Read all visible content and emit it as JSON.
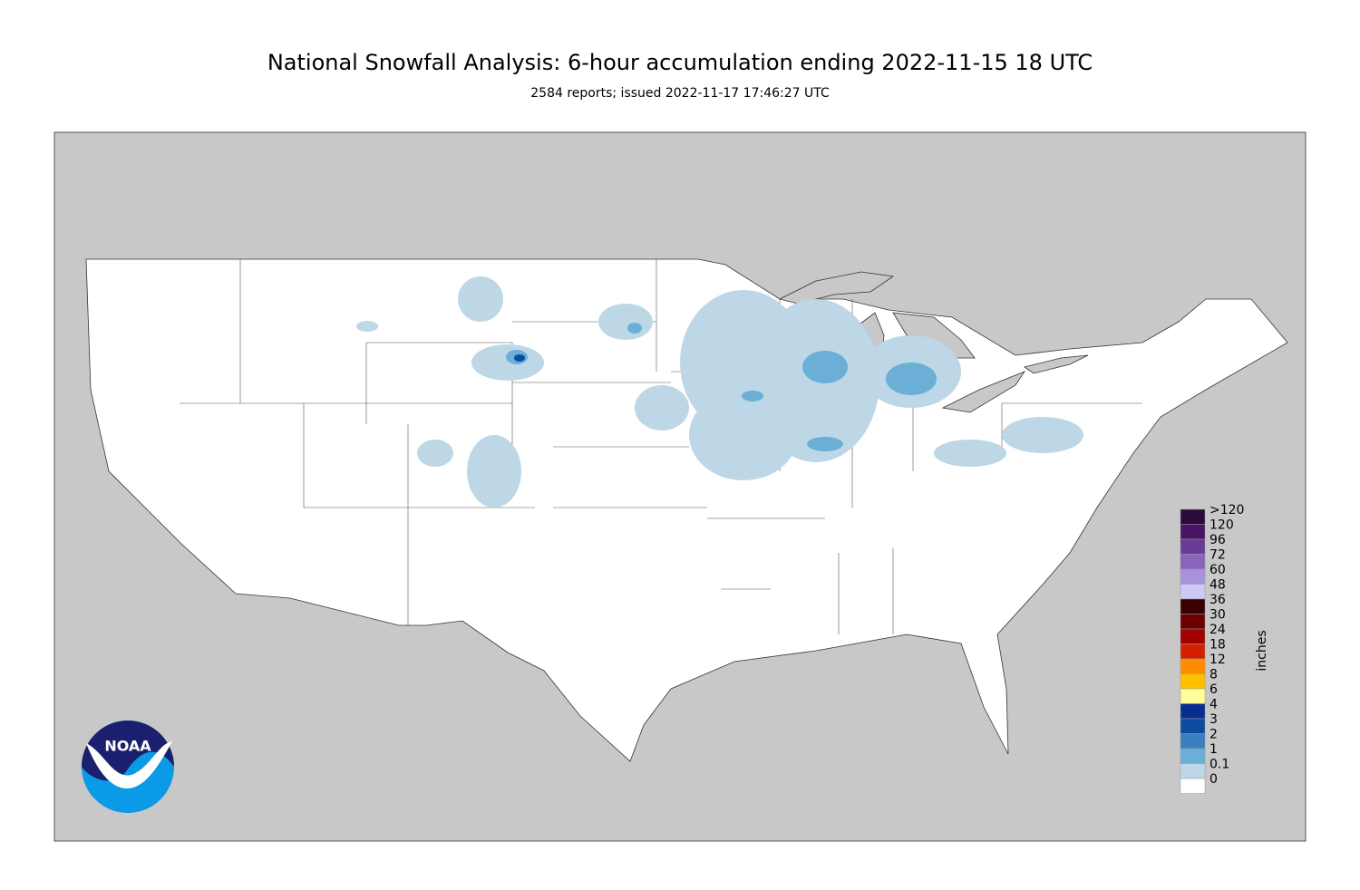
{
  "header": {
    "title": "National Snowfall Analysis: 6-hour accumulation ending 2022-11-15 18 UTC",
    "subtitle": "2584 reports; issued 2022-11-17 17:46:27 UTC"
  },
  "legend": {
    "unit": "inches",
    "items": [
      {
        "label": ">120",
        "color": "#2b0a3d"
      },
      {
        "label": "120",
        "color": "#4b1466"
      },
      {
        "label": "96",
        "color": "#6a3a97"
      },
      {
        "label": "72",
        "color": "#8b63bf"
      },
      {
        "label": "60",
        "color": "#a892dc"
      },
      {
        "label": "48",
        "color": "#cdc9f6"
      },
      {
        "label": "36",
        "color": "#3a0000"
      },
      {
        "label": "30",
        "color": "#6a0000"
      },
      {
        "label": "24",
        "color": "#a30000"
      },
      {
        "label": "18",
        "color": "#d42000"
      },
      {
        "label": "12",
        "color": "#ff8c00"
      },
      {
        "label": "8",
        "color": "#ffc000"
      },
      {
        "label": "6",
        "color": "#ffff99"
      },
      {
        "label": "4",
        "color": "#082e8f"
      },
      {
        "label": "3",
        "color": "#0b4c9e"
      },
      {
        "label": "2",
        "color": "#3a7fc1"
      },
      {
        "label": "1",
        "color": "#6baed6"
      },
      {
        "label": "0.1",
        "color": "#bdd7e7"
      },
      {
        "label": "0",
        "color": "#ffffff"
      }
    ]
  },
  "logo": {
    "text": "NOAA"
  }
}
